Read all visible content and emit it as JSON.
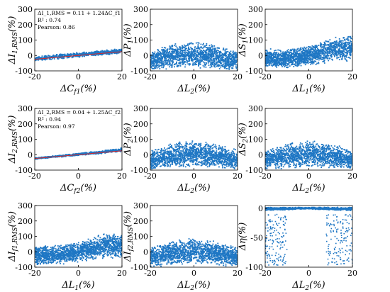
{
  "figure_colors": {
    "points": "#1f77c4",
    "fit_line": "#d62728",
    "halo": "#a8ecf2",
    "axes": "#000000"
  },
  "chart_data": [
    {
      "type": "scatter",
      "xlabel": "ΔC_f1(%)",
      "ylabel": "ΔI_1,RMS(%)",
      "xlim": [
        -20,
        20
      ],
      "ylim": [
        -100,
        300
      ],
      "xticks": [
        "-20",
        "0",
        "20"
      ],
      "yticks": [
        "-100",
        "0",
        "100",
        "200",
        "300"
      ],
      "fit": {
        "slope": 1.24,
        "intercept": 0.11
      },
      "annotations": [
        "ΔI_1,RMS = 0.11 + 1.24ΔC_f1",
        "R² : 0.74",
        "Pearson: 0.86"
      ],
      "cloud": [
        [
          -20,
          -35,
          -8
        ],
        [
          -10,
          -25,
          10
        ],
        [
          0,
          -12,
          20
        ],
        [
          10,
          0,
          33
        ],
        [
          20,
          12,
          45
        ]
      ],
      "density": 650
    },
    {
      "type": "scatter",
      "xlabel": "ΔL_2(%)",
      "ylabel": "ΔP_1(%)",
      "xlim": [
        -20,
        20
      ],
      "ylim": [
        -100,
        300
      ],
      "xticks": [
        "-20",
        "0",
        "20"
      ],
      "yticks": [
        "-100",
        "0",
        "100",
        "200",
        "300"
      ],
      "cloud": [
        [
          -20,
          -100,
          30
        ],
        [
          -10,
          -90,
          75
        ],
        [
          0,
          -80,
          95
        ],
        [
          10,
          -90,
          70
        ],
        [
          20,
          -100,
          30
        ]
      ],
      "density": 1500
    },
    {
      "type": "scatter",
      "xlabel": "ΔL_1(%)",
      "ylabel": "ΔS_1(%)",
      "xlim": [
        -20,
        20
      ],
      "ylim": [
        -100,
        300
      ],
      "xticks": [
        "-20",
        "0",
        "20"
      ],
      "yticks": [
        "-100",
        "0",
        "100",
        "200",
        "300"
      ],
      "cloud": [
        [
          -20,
          -85,
          45
        ],
        [
          -10,
          -85,
          40
        ],
        [
          0,
          -70,
          70
        ],
        [
          10,
          -45,
          115
        ],
        [
          20,
          -40,
          140
        ]
      ],
      "density": 1600
    },
    {
      "type": "scatter",
      "xlabel": "ΔC_f2(%)",
      "ylabel": "ΔI_2,RMS(%)",
      "xlim": [
        -20,
        20
      ],
      "ylim": [
        -100,
        300
      ],
      "xticks": [
        "-20",
        "0",
        "20"
      ],
      "yticks": [
        "-100",
        "0",
        "100",
        "200",
        "300"
      ],
      "fit": {
        "slope": 1.25,
        "intercept": 0.04
      },
      "annotations": [
        "ΔI_2,RMS = 0.04 + 1.25ΔC_f2",
        "R² : 0.94",
        "Pearson: 0.97"
      ],
      "cloud": [
        [
          -20,
          -30,
          -20
        ],
        [
          -10,
          -18,
          -5
        ],
        [
          0,
          -5,
          10
        ],
        [
          10,
          5,
          25
        ],
        [
          20,
          20,
          45
        ]
      ],
      "density": 650
    },
    {
      "type": "scatter",
      "xlabel": "ΔL_2(%)",
      "ylabel": "ΔP_2(%)",
      "xlim": [
        -20,
        20
      ],
      "ylim": [
        -100,
        300
      ],
      "xticks": [
        "-20",
        "0",
        "20"
      ],
      "yticks": [
        "-100",
        "0",
        "100",
        "200",
        "300"
      ],
      "cloud": [
        [
          -20,
          -100,
          30
        ],
        [
          -10,
          -90,
          75
        ],
        [
          0,
          -80,
          100
        ],
        [
          10,
          -90,
          75
        ],
        [
          20,
          -100,
          30
        ]
      ],
      "density": 1500
    },
    {
      "type": "scatter",
      "xlabel": "ΔL_2(%)",
      "ylabel": "ΔS_2(%)",
      "xlim": [
        -20,
        20
      ],
      "ylim": [
        -100,
        300
      ],
      "xticks": [
        "-20",
        "0",
        "20"
      ],
      "yticks": [
        "-100",
        "0",
        "100",
        "200",
        "300"
      ],
      "cloud": [
        [
          -20,
          -100,
          30
        ],
        [
          -10,
          -90,
          75
        ],
        [
          0,
          -80,
          100
        ],
        [
          10,
          -90,
          75
        ],
        [
          20,
          -100,
          30
        ]
      ],
      "density": 1500
    },
    {
      "type": "scatter",
      "xlabel": "ΔL_1(%)",
      "ylabel": "ΔI_f1,RMS(%)",
      "xlim": [
        -20,
        20
      ],
      "ylim": [
        -100,
        300
      ],
      "xticks": [
        "-20",
        "0",
        "20"
      ],
      "yticks": [
        "-100",
        "0",
        "100",
        "200",
        "300"
      ],
      "cloud": [
        [
          -20,
          -85,
          35
        ],
        [
          -10,
          -85,
          45
        ],
        [
          0,
          -70,
          65
        ],
        [
          10,
          -45,
          115
        ],
        [
          20,
          -40,
          135
        ]
      ],
      "density": 1600
    },
    {
      "type": "scatter",
      "xlabel": "ΔL_2(%)",
      "ylabel": "ΔI_f2,RMS(%)",
      "xlim": [
        -20,
        20
      ],
      "ylim": [
        -100,
        300
      ],
      "xticks": [
        "-20",
        "0",
        "20"
      ],
      "yticks": [
        "-100",
        "0",
        "100",
        "200",
        "300"
      ],
      "cloud": [
        [
          -20,
          -100,
          30
        ],
        [
          -10,
          -90,
          75
        ],
        [
          0,
          -80,
          95
        ],
        [
          10,
          -90,
          70
        ],
        [
          20,
          -100,
          30
        ]
      ],
      "density": 1500
    },
    {
      "type": "scatter",
      "xlabel": "ΔL_2(%)",
      "ylabel": "Δη(%)",
      "xlim": [
        -20,
        20
      ],
      "ylim": [
        -100,
        5
      ],
      "xticks": [
        "-20",
        "0",
        "20"
      ],
      "yticks": [
        "-100",
        "-50",
        "0"
      ],
      "cloud": [
        [
          -20,
          -4,
          2
        ],
        [
          0,
          -1,
          2
        ],
        [
          20,
          -4,
          2
        ]
      ],
      "density": 900,
      "outliers": {
        "x_left": [
          -20,
          -10
        ],
        "x_right": [
          8,
          20
        ],
        "y": [
          -98,
          -10
        ],
        "count": 300
      }
    }
  ]
}
